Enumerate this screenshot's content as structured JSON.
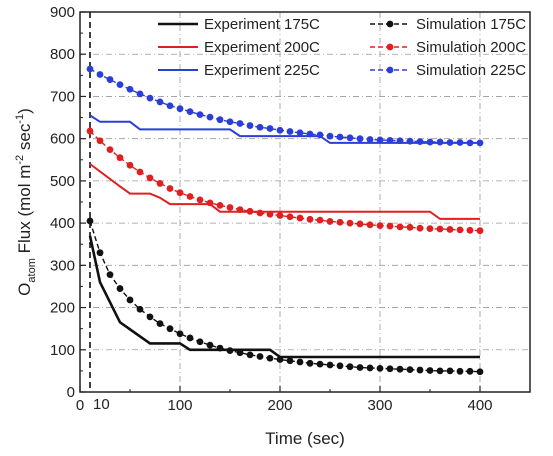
{
  "chart_data": {
    "type": "line",
    "xlabel": "Time (sec)",
    "ylabel": {
      "o": "O",
      "sub": "atom",
      "mid": " Flux (mol m",
      "sup1": "-2",
      "mid2": " sec",
      "sup2": "-1",
      "end": ")"
    },
    "xlim": [
      0,
      450
    ],
    "ylim": [
      0,
      900
    ],
    "x_ticks": [
      0,
      100,
      200,
      300,
      400
    ],
    "y_ticks": [
      0,
      100,
      200,
      300,
      400,
      500,
      600,
      700,
      800,
      900
    ],
    "extra_x_tick": {
      "value": 10,
      "label": "10"
    },
    "vline_x": 10,
    "grid": true,
    "legend_position": "top-right",
    "colors": {
      "175C": "#111111",
      "200C": "#e02020",
      "225C": "#2a3fd8",
      "grid": "#9a9a9a"
    },
    "series": [
      {
        "name": "Experiment 175C",
        "style": "solid",
        "color": "#111111",
        "x": [
          10,
          20,
          40,
          70,
          100,
          110,
          190,
          200,
          400
        ],
        "y": [
          370,
          260,
          165,
          115,
          115,
          100,
          100,
          83,
          83
        ]
      },
      {
        "name": "Experiment 200C",
        "style": "solid",
        "color": "#e02020",
        "x": [
          10,
          40,
          50,
          70,
          80,
          90,
          130,
          140,
          350,
          360,
          400
        ],
        "y": [
          540,
          487,
          470,
          470,
          460,
          445,
          445,
          427,
          427,
          410,
          410
        ]
      },
      {
        "name": "Experiment 225C",
        "style": "solid",
        "color": "#2a3fd8",
        "x": [
          10,
          20,
          50,
          60,
          150,
          160,
          240,
          250,
          400
        ],
        "y": [
          655,
          640,
          640,
          622,
          622,
          606,
          606,
          590,
          590
        ]
      },
      {
        "name": "Simulation 175C",
        "style": "dashed-dots",
        "color": "#111111",
        "x": [
          10,
          20,
          30,
          40,
          50,
          60,
          70,
          80,
          90,
          100,
          110,
          120,
          130,
          140,
          150,
          160,
          170,
          180,
          190,
          200,
          210,
          220,
          230,
          240,
          250,
          260,
          270,
          280,
          290,
          300,
          310,
          320,
          330,
          340,
          350,
          360,
          370,
          380,
          390,
          400
        ],
        "y": [
          405,
          330,
          278,
          245,
          218,
          196,
          178,
          162,
          150,
          138,
          128,
          119,
          111,
          104,
          98,
          93,
          88,
          84,
          80,
          77,
          74,
          71,
          68,
          66,
          64,
          62,
          60,
          58,
          57,
          56,
          55,
          54,
          53,
          52,
          51,
          50,
          50,
          49,
          49,
          48
        ]
      },
      {
        "name": "Simulation 200C",
        "style": "dashed-dots",
        "color": "#e02020",
        "x": [
          10,
          20,
          30,
          40,
          50,
          60,
          70,
          80,
          90,
          100,
          110,
          120,
          130,
          140,
          150,
          160,
          170,
          180,
          190,
          200,
          210,
          220,
          230,
          240,
          250,
          260,
          270,
          280,
          290,
          300,
          310,
          320,
          330,
          340,
          350,
          360,
          370,
          380,
          390,
          400
        ],
        "y": [
          618,
          595,
          574,
          555,
          537,
          521,
          507,
          494,
          482,
          472,
          463,
          455,
          448,
          442,
          437,
          432,
          428,
          424,
          421,
          418,
          415,
          412,
          409,
          407,
          404,
          402,
          400,
          398,
          396,
          394,
          393,
          391,
          390,
          388,
          387,
          386,
          385,
          384,
          383,
          382
        ]
      },
      {
        "name": "Simulation 225C",
        "style": "dashed-dots",
        "color": "#2a3fd8",
        "x": [
          10,
          20,
          30,
          40,
          50,
          60,
          70,
          80,
          90,
          100,
          110,
          120,
          130,
          140,
          150,
          160,
          170,
          180,
          190,
          200,
          210,
          220,
          230,
          240,
          250,
          260,
          270,
          280,
          290,
          300,
          310,
          320,
          330,
          340,
          350,
          360,
          370,
          380,
          390,
          400
        ],
        "y": [
          765,
          752,
          740,
          728,
          717,
          706,
          696,
          687,
          678,
          671,
          664,
          657,
          651,
          645,
          640,
          636,
          631,
          627,
          624,
          620,
          617,
          614,
          611,
          609,
          606,
          604,
          602,
          600,
          598,
          597,
          596,
          595,
          594,
          593,
          592,
          592,
          591,
          591,
          590,
          590
        ]
      }
    ],
    "legend_columns": [
      [
        "Experiment 175C",
        "Experiment 200C",
        "Experiment 225C"
      ],
      [
        "Simulation 175C",
        "Simulation 200C",
        "Simulation 225C"
      ]
    ]
  }
}
